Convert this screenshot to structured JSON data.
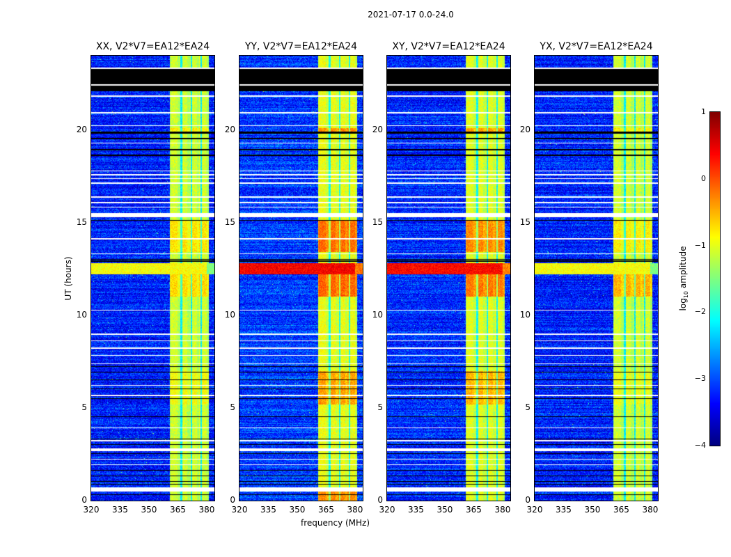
{
  "chart_data": {
    "type": "heatmap",
    "title": "2021-07-17 0.0-24.0",
    "xlabel": "frequency (MHz)",
    "ylabel": "UT (hours)",
    "xlim": [
      320,
      384
    ],
    "ylim": [
      0,
      24
    ],
    "xticks": [
      320,
      335,
      350,
      365,
      380
    ],
    "yticks": [
      0,
      5,
      10,
      15,
      20
    ],
    "colorbar": {
      "label_main": "log",
      "label_sub": "10",
      "label_rest": " amplitude",
      "range": [
        -4,
        1
      ],
      "ticks": [
        1,
        0,
        -1,
        -2,
        -3,
        -4
      ],
      "tick_labels": [
        "1",
        "0",
        "−1",
        "−2",
        "−3",
        "−4"
      ],
      "colormap": "jet"
    },
    "band_mhz": [
      361,
      381
    ],
    "band_gaps_mhz": [
      [
        366.4,
        367.2
      ],
      [
        371.6,
        372.4
      ],
      [
        376.8,
        377.6
      ]
    ],
    "no_data_hours": [
      [
        22.1,
        23.3
      ]
    ],
    "flagged_white_hours": [
      [
        22.4,
        22.45
      ],
      [
        23.3,
        23.35
      ],
      [
        21.8,
        21.85
      ],
      [
        20.9,
        20.95
      ],
      [
        20.2,
        20.25
      ],
      [
        19.25,
        19.3
      ],
      [
        17.75,
        17.8
      ],
      [
        17.55,
        17.6
      ],
      [
        17.35,
        17.4
      ],
      [
        17.1,
        17.15
      ],
      [
        16.35,
        16.4
      ],
      [
        16.05,
        16.1
      ],
      [
        15.8,
        15.85
      ],
      [
        15.3,
        15.5
      ],
      [
        14.1,
        14.15
      ],
      [
        13.3,
        13.35
      ],
      [
        10.25,
        10.3
      ],
      [
        8.95,
        9.0
      ],
      [
        8.6,
        8.65
      ],
      [
        8.2,
        8.25
      ],
      [
        7.8,
        7.85
      ],
      [
        7.35,
        7.4
      ],
      [
        6.2,
        6.25
      ],
      [
        5.65,
        5.7
      ],
      [
        3.9,
        3.95
      ],
      [
        3.2,
        3.25
      ],
      [
        2.65,
        2.8
      ],
      [
        2.2,
        2.25
      ],
      [
        1.9,
        1.95
      ],
      [
        0.5,
        0.72
      ]
    ],
    "flagged_black_hours": [
      [
        19.8,
        19.9
      ],
      [
        19.5,
        19.55
      ],
      [
        18.9,
        18.95
      ],
      [
        18.6,
        18.65
      ],
      [
        17.0,
        17.03
      ],
      [
        16.7,
        16.73
      ],
      [
        15.1,
        15.13
      ],
      [
        13.0,
        13.05
      ],
      [
        12.9,
        12.95
      ],
      [
        7.2,
        7.25
      ],
      [
        6.9,
        6.95
      ],
      [
        6.5,
        6.55
      ],
      [
        6.0,
        6.03
      ],
      [
        5.5,
        5.53
      ],
      [
        4.5,
        4.55
      ],
      [
        3.3,
        3.35
      ],
      [
        3.0,
        3.05
      ],
      [
        2.5,
        2.55
      ],
      [
        1.6,
        1.65
      ],
      [
        1.3,
        1.35
      ],
      [
        1.0,
        1.05
      ],
      [
        0.85,
        0.9
      ],
      [
        0.3,
        0.33
      ]
    ],
    "series": [
      {
        "name": "XX, V2*V7=EA12*EA24",
        "baseline": -3.25,
        "band_level": -1.1,
        "band_peaks": [
          [
            13.4,
            15.1,
            -0.75
          ],
          [
            11.0,
            12.2,
            -0.7
          ],
          [
            5.2,
            7.0,
            -0.9
          ],
          [
            19.8,
            20.1,
            -0.8
          ]
        ],
        "broadband_hours": [
          12.2,
          12.8
        ],
        "broadband_level": -0.9
      },
      {
        "name": "YY, V2*V7=EA12*EA24",
        "baseline": -3.1,
        "band_level": -0.95,
        "band_peaks": [
          [
            13.4,
            15.1,
            -0.15
          ],
          [
            11.0,
            12.2,
            -0.1
          ],
          [
            5.2,
            7.0,
            -0.4
          ],
          [
            0,
            0.5,
            -0.3
          ],
          [
            19.8,
            20.1,
            -0.3
          ]
        ],
        "broadband_hours": [
          12.2,
          12.8
        ],
        "broadband_level": 0.4
      },
      {
        "name": "XY, V2*V7=EA12*EA24",
        "baseline": -3.2,
        "band_level": -1.0,
        "band_peaks": [
          [
            13.4,
            15.1,
            -0.3
          ],
          [
            11.0,
            12.2,
            -0.2
          ],
          [
            5.2,
            7.0,
            -0.5
          ],
          [
            19.8,
            20.1,
            -0.4
          ]
        ],
        "broadband_hours": [
          12.2,
          12.8
        ],
        "broadband_level": 0.35
      },
      {
        "name": "YX, V2*V7=EA12*EA24",
        "baseline": -3.25,
        "band_level": -1.1,
        "band_peaks": [
          [
            13.4,
            15.1,
            -0.8
          ],
          [
            11.0,
            12.2,
            -0.5
          ],
          [
            5.2,
            7.0,
            -0.95
          ],
          [
            19.8,
            20.1,
            -0.8
          ]
        ],
        "broadband_hours": [
          12.2,
          12.8
        ],
        "broadband_level": -0.9
      }
    ]
  }
}
